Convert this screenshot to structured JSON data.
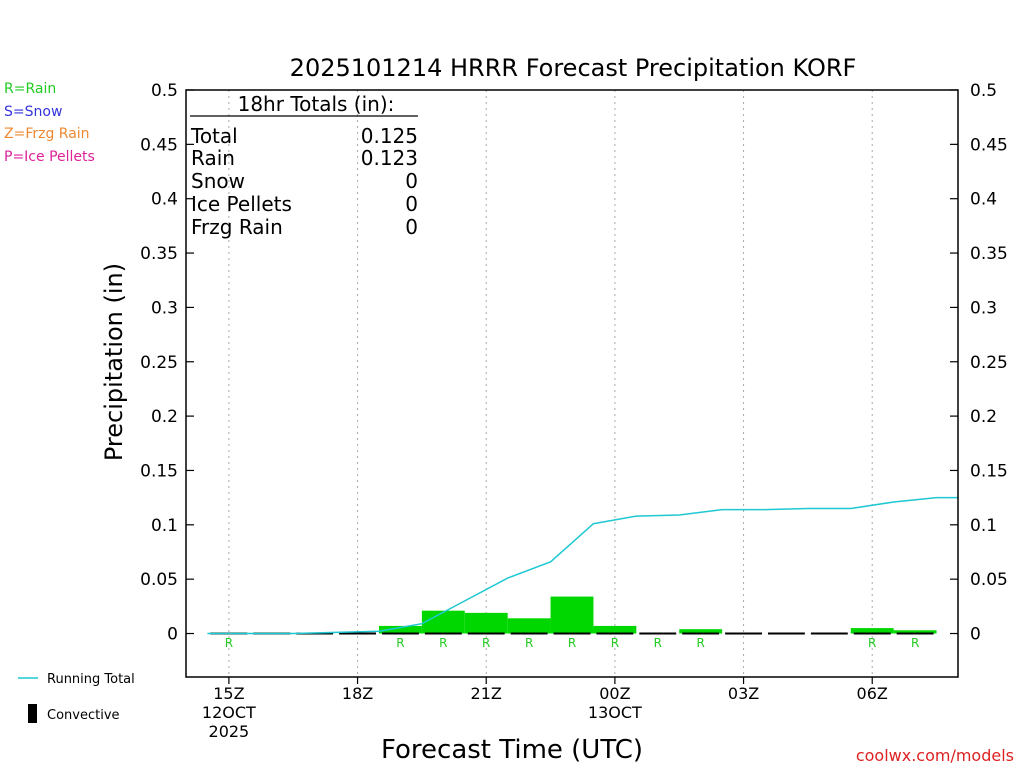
{
  "chart_data": {
    "type": "bar",
    "title": "2025101214 HRRR Forecast Precipitation KORF",
    "xlabel": "Forecast Time (UTC)",
    "ylabel": "Precipitation (in)",
    "ylim": [
      -0.04,
      0.5
    ],
    "y_ticks": [
      "0",
      "0.05",
      "0.1",
      "0.15",
      "0.2",
      "0.25",
      "0.3",
      "0.35",
      "0.4",
      "0.45",
      "0.5"
    ],
    "y_tick_values": [
      0,
      0.05,
      0.1,
      0.15,
      0.2,
      0.25,
      0.3,
      0.35,
      0.4,
      0.45,
      0.5
    ],
    "x_ticks": [
      {
        "hour": 0,
        "lines": [
          "15Z",
          "12OCT",
          "2025"
        ]
      },
      {
        "hour": 3,
        "lines": [
          "18Z"
        ]
      },
      {
        "hour": 6,
        "lines": [
          "21Z"
        ]
      },
      {
        "hour": 9,
        "lines": [
          "00Z",
          "13OCT"
        ]
      },
      {
        "hour": 12,
        "lines": [
          "03Z"
        ]
      },
      {
        "hour": 15,
        "lines": [
          "06Z"
        ]
      }
    ],
    "xlim": [
      -1,
      17
    ],
    "bars": [
      {
        "hour": 0,
        "value": 0.0,
        "type": "R"
      },
      {
        "hour": 1,
        "value": 0.0,
        "type": ""
      },
      {
        "hour": 2,
        "value": 0.0,
        "type": ""
      },
      {
        "hour": 3,
        "value": 0.0,
        "type": ""
      },
      {
        "hour": 4,
        "value": 0.007,
        "type": "R"
      },
      {
        "hour": 5,
        "value": 0.021,
        "type": "R"
      },
      {
        "hour": 6,
        "value": 0.019,
        "type": "R"
      },
      {
        "hour": 7,
        "value": 0.014,
        "type": "R"
      },
      {
        "hour": 8,
        "value": 0.034,
        "type": "R"
      },
      {
        "hour": 9,
        "value": 0.007,
        "type": "R"
      },
      {
        "hour": 10,
        "value": 0.0,
        "type": "R"
      },
      {
        "hour": 11,
        "value": 0.004,
        "type": "R"
      },
      {
        "hour": 12,
        "value": 0.0,
        "type": ""
      },
      {
        "hour": 13,
        "value": 0.0,
        "type": ""
      },
      {
        "hour": 14,
        "value": 0.0,
        "type": ""
      },
      {
        "hour": 15,
        "value": 0.005,
        "type": "R"
      },
      {
        "hour": 16,
        "value": 0.003,
        "type": "R"
      }
    ],
    "running_total": [
      {
        "hour": -0.5,
        "value": 0.0
      },
      {
        "hour": 0.5,
        "value": 0.0
      },
      {
        "hour": 1.5,
        "value": 0.0
      },
      {
        "hour": 2.5,
        "value": 0.001
      },
      {
        "hour": 3.5,
        "value": 0.002
      },
      {
        "hour": 4.5,
        "value": 0.009
      },
      {
        "hour": 5.5,
        "value": 0.03
      },
      {
        "hour": 6.5,
        "value": 0.051
      },
      {
        "hour": 7.5,
        "value": 0.066
      },
      {
        "hour": 8.5,
        "value": 0.101
      },
      {
        "hour": 9.5,
        "value": 0.108
      },
      {
        "hour": 10.5,
        "value": 0.109
      },
      {
        "hour": 11.5,
        "value": 0.114
      },
      {
        "hour": 12.5,
        "value": 0.114
      },
      {
        "hour": 13.5,
        "value": 0.115
      },
      {
        "hour": 14.5,
        "value": 0.115
      },
      {
        "hour": 15.5,
        "value": 0.121
      },
      {
        "hour": 16.5,
        "value": 0.125
      },
      {
        "hour": 17,
        "value": 0.125
      }
    ],
    "totals": {
      "heading": "18hr Totals (in):",
      "rows": [
        {
          "label": "Total",
          "value": "0.125"
        },
        {
          "label": "Rain",
          "value": "0.123"
        },
        {
          "label": "Snow",
          "value": "0"
        },
        {
          "label": "Ice Pellets",
          "value": "0"
        },
        {
          "label": "Frzg Rain",
          "value": "0"
        }
      ]
    },
    "type_legend": [
      {
        "text": "R=Rain",
        "color": "#22cc22"
      },
      {
        "text": "S=Snow",
        "color": "#3333dd"
      },
      {
        "text": "Z=Frzg Rain",
        "color": "#ee8833"
      },
      {
        "text": "P=Ice Pellets",
        "color": "#dd2299"
      }
    ],
    "series_legend": {
      "running_total": "Running Total",
      "convective": "Convective"
    },
    "credit": "coolwx.com/models",
    "colors": {
      "bar": "#00d700",
      "running_total": "#1ec8d2",
      "type_label": "#22cc22",
      "credit": "#dd2222",
      "grid": "#aaaaaa"
    }
  }
}
